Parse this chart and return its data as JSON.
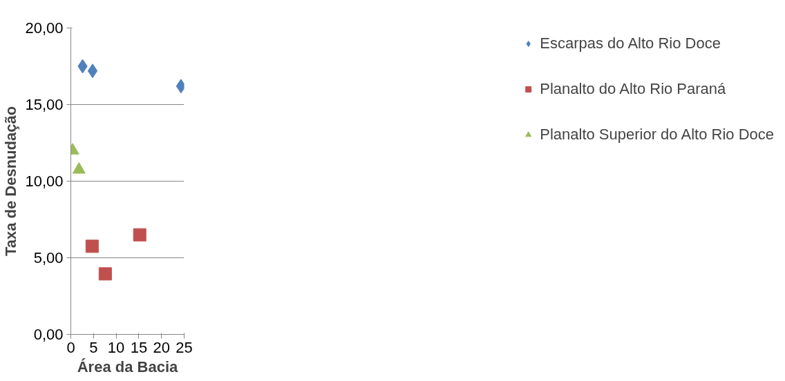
{
  "chart_data": {
    "type": "scatter",
    "xlabel": "Área da Bacia",
    "ylabel": "Taxa de Desnudação",
    "xlim": [
      0,
      25
    ],
    "xticks": [
      0,
      5,
      10,
      15,
      20,
      25
    ],
    "ylim": [
      0,
      20
    ],
    "yticks": [
      {
        "value": 0,
        "label": "0,00"
      },
      {
        "value": 5,
        "label": "5,00"
      },
      {
        "value": 10,
        "label": "10,00"
      },
      {
        "value": 15,
        "label": "15,00"
      },
      {
        "value": 20,
        "label": "20,00"
      }
    ],
    "grid": "y",
    "legend": "right",
    "series": [
      {
        "name": "Escarpas do Alto Rio Doce",
        "color": "#4f81bd",
        "marker": "diamond",
        "x": [
          2.6,
          4.8,
          24.3
        ],
        "values": [
          17.5,
          17.2,
          16.2
        ]
      },
      {
        "name": "Planalto do Alto Rio Paraná",
        "color": "#c0504d",
        "marker": "square",
        "x": [
          4.7,
          7.6,
          15.2
        ],
        "values": [
          5.75,
          3.95,
          6.5
        ]
      },
      {
        "name": "Planalto Superior do Alto Rio Doce",
        "color": "#9bbb59",
        "marker": "triangle",
        "x": [
          0.4,
          1.8
        ],
        "values": [
          12.0,
          10.75
        ]
      }
    ]
  }
}
